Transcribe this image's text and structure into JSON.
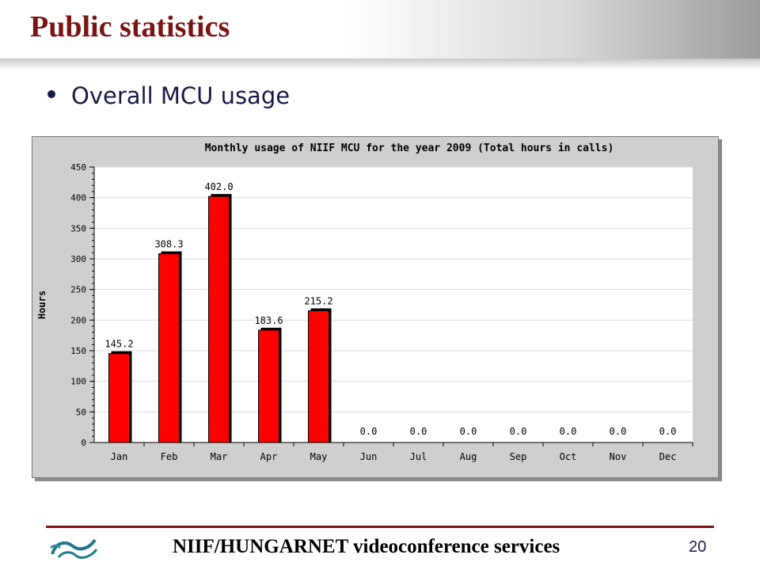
{
  "slide": {
    "title": "Public statistics",
    "bullet": "Overall MCU usage",
    "footer": "NIIF/HUNGARNET videoconference services",
    "page_number": "20"
  },
  "colors": {
    "bar": "#ff0000",
    "bar_shadow": "#000000",
    "title": "#7a1414",
    "plot_bg": "#ffffff",
    "frame_bg": "#cfcfcf"
  },
  "chart_data": {
    "type": "bar",
    "title": "Monthly usage of NIIF MCU for the year 2009 (Total hours in calls)",
    "xlabel": "",
    "ylabel": "Hours",
    "ylim": [
      0,
      450
    ],
    "yticks": [
      0,
      50,
      100,
      150,
      200,
      250,
      300,
      350,
      400,
      450
    ],
    "grid": true,
    "categories": [
      "Jan",
      "Feb",
      "Mar",
      "Apr",
      "May",
      "Jun",
      "Jul",
      "Aug",
      "Sep",
      "Oct",
      "Nov",
      "Dec"
    ],
    "values": [
      145.2,
      308.3,
      402.0,
      183.6,
      215.2,
      0.0,
      0.0,
      0.0,
      0.0,
      0.0,
      0.0,
      0.0
    ],
    "value_labels": [
      "145.2",
      "308.3",
      "402.0",
      "183.6",
      "215.2",
      "0.0",
      "0.0",
      "0.0",
      "0.0",
      "0.0",
      "0.0",
      "0.0"
    ]
  }
}
